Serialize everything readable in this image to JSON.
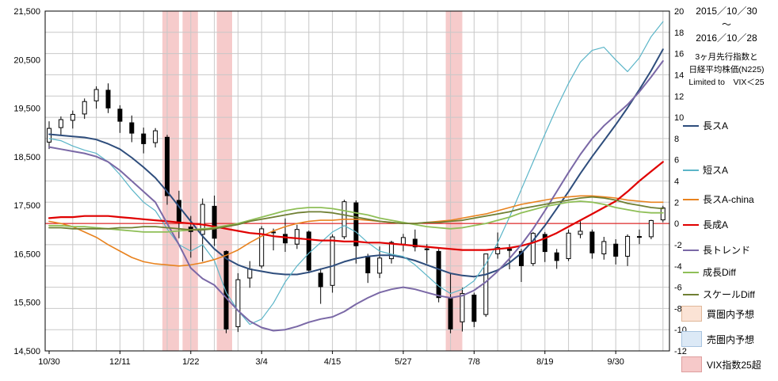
{
  "header": {
    "date_start": "2015／10／30",
    "tilde": "～",
    "date_end": "2016／10／28",
    "subtitle1": "3ヶ月先行指数と",
    "subtitle2": "日経平均株価(N225)",
    "subtitle3": "Limited to　VIX＜25"
  },
  "legend": {
    "lines": [
      {
        "key": "long-a",
        "label": "長スA",
        "color": "#2E4D7C"
      },
      {
        "key": "short-a",
        "label": "短スA",
        "color": "#5BB5C8"
      },
      {
        "key": "long-a-china",
        "label": "長スA-china",
        "color": "#E8821E"
      },
      {
        "key": "long-growth-a",
        "label": "長成A",
        "color": "#E00000"
      },
      {
        "key": "long-trend",
        "label": "長トレンド",
        "color": "#7A68A6"
      },
      {
        "key": "growth-diff",
        "label": "成長Diff",
        "color": "#8FBF57"
      },
      {
        "key": "scale-diff",
        "label": "スケールDiff",
        "color": "#6F7F33"
      }
    ],
    "boxes": [
      {
        "key": "buy-zone-forecast",
        "label": "買圏内予想",
        "fill": "#FBE3D5",
        "border": "#E0B89A"
      },
      {
        "key": "sell-zone-forecast",
        "label": "売圏内予想",
        "fill": "#DCE9F6",
        "border": "#A8C4E0"
      },
      {
        "key": "vix-over-25",
        "label": "VIX指数25超",
        "fill": "#F6C9C9",
        "border": "#DE9E9E"
      }
    ]
  },
  "chart_data": {
    "type": "candlestick+line",
    "legend_position": "right",
    "x_unit": "week",
    "x_axis": {
      "labels": [
        "10/30",
        "12/11",
        "1/22",
        "3/4",
        "4/15",
        "5/27",
        "7/8",
        "8/19",
        "9/30"
      ],
      "weeks": [
        0,
        6,
        12,
        18,
        24,
        30,
        36,
        42,
        48
      ]
    },
    "left_axis": {
      "min": 14500,
      "max": 21500,
      "ticks": [
        21500,
        20500,
        19500,
        18500,
        17500,
        16500,
        15500,
        14500
      ],
      "labels": [
        "21,500",
        "20,500",
        "19,500",
        "18,500",
        "17,500",
        "16,500",
        "15,500",
        "14,500"
      ]
    },
    "right_axis": {
      "min": -12,
      "max": 20,
      "ticks": [
        20,
        18,
        16,
        14,
        12,
        10,
        8,
        6,
        4,
        2,
        0,
        -2,
        -4,
        -6,
        -8,
        -10,
        -12
      ],
      "labels": [
        "20",
        "18",
        "16",
        "14",
        "12",
        "10",
        "8",
        "6",
        "4",
        "2",
        "0",
        "-2",
        "-4",
        "-6",
        "-8",
        "-10",
        "-12"
      ]
    },
    "grid_color": "#C8C8C8",
    "zero_line_color": "#E00000",
    "band_fill": "#F6CBCB",
    "vix_bands": [
      {
        "from": 9.6,
        "to": 11.0
      },
      {
        "from": 11.3,
        "to": 12.6
      },
      {
        "from": 14.2,
        "to": 15.5
      },
      {
        "from": 33.6,
        "to": 35.0
      }
    ],
    "candles": {
      "name": "N225",
      "up_fill": "#FFFFFF",
      "down_fill": "#000000",
      "stroke": "#000000",
      "ohlc": [
        [
          18800,
          19230,
          18660,
          19083
        ],
        [
          19100,
          19330,
          18930,
          19265
        ],
        [
          19250,
          19450,
          19080,
          19372
        ],
        [
          19380,
          19700,
          19280,
          19636
        ],
        [
          19650,
          19950,
          19490,
          19884
        ],
        [
          19870,
          20012,
          19400,
          19504
        ],
        [
          19480,
          19560,
          18990,
          19230
        ],
        [
          19200,
          19350,
          18800,
          18986
        ],
        [
          18970,
          19100,
          18570,
          18770
        ],
        [
          18790,
          19090,
          18690,
          19034
        ],
        [
          18900,
          18950,
          17510,
          17698
        ],
        [
          17600,
          17800,
          16820,
          17147
        ],
        [
          17050,
          17280,
          16420,
          16959
        ],
        [
          16900,
          17640,
          16340,
          17518
        ],
        [
          17480,
          17700,
          16660,
          16820
        ],
        [
          16550,
          16570,
          14866,
          14953
        ],
        [
          15000,
          16100,
          14890,
          15967
        ],
        [
          16000,
          16350,
          15800,
          16188
        ],
        [
          16250,
          17070,
          16200,
          17015
        ],
        [
          16950,
          17020,
          16570,
          16938
        ],
        [
          16900,
          17230,
          16540,
          16724
        ],
        [
          16700,
          17100,
          16600,
          17002
        ],
        [
          16950,
          16980,
          16100,
          16164
        ],
        [
          16100,
          16200,
          15470,
          15822
        ],
        [
          15850,
          16900,
          15700,
          16848
        ],
        [
          16850,
          17613,
          16800,
          17572
        ],
        [
          17550,
          17600,
          16300,
          16666
        ],
        [
          16450,
          16500,
          15900,
          16107
        ],
        [
          16100,
          16650,
          16000,
          16412
        ],
        [
          16400,
          16770,
          16300,
          16736
        ],
        [
          16700,
          16910,
          16550,
          16835
        ],
        [
          16800,
          17000,
          16550,
          16642
        ],
        [
          16600,
          16700,
          16300,
          16601
        ],
        [
          16550,
          16600,
          15500,
          15599
        ],
        [
          15600,
          16100,
          14864,
          14952
        ],
        [
          15100,
          15800,
          14900,
          15682
        ],
        [
          15650,
          15700,
          14990,
          15107
        ],
        [
          15250,
          16500,
          15200,
          16498
        ],
        [
          16500,
          16940,
          16400,
          16627
        ],
        [
          16600,
          16700,
          16180,
          16569
        ],
        [
          16550,
          16600,
          15920,
          16254
        ],
        [
          16300,
          16950,
          16250,
          16920
        ],
        [
          16900,
          16950,
          16330,
          16546
        ],
        [
          16520,
          16600,
          16190,
          16361
        ],
        [
          16400,
          17000,
          16350,
          16926
        ],
        [
          16900,
          17170,
          16820,
          16966
        ],
        [
          16950,
          17000,
          16400,
          16519
        ],
        [
          16500,
          16850,
          16380,
          16754
        ],
        [
          16700,
          16800,
          16280,
          16450
        ],
        [
          16450,
          16900,
          16250,
          16860
        ],
        [
          16850,
          17000,
          16700,
          16856
        ],
        [
          16850,
          17200,
          16800,
          17185
        ],
        [
          17200,
          17490,
          17150,
          17446
        ]
      ]
    },
    "series": [
      {
        "key": "long-a",
        "name": "長スA",
        "color": "#2E4D7C",
        "width": 2,
        "values": [
          8.4,
          8.3,
          8.2,
          8.1,
          7.9,
          7.5,
          7.0,
          6.2,
          5.3,
          4.3,
          3.0,
          1.6,
          0.2,
          -1.2,
          -2.4,
          -3.3,
          -3.9,
          -4.3,
          -4.5,
          -4.7,
          -4.8,
          -4.8,
          -4.6,
          -4.3,
          -4.0,
          -3.6,
          -3.3,
          -3.1,
          -3.0,
          -3.0,
          -3.2,
          -3.5,
          -3.9,
          -4.3,
          -4.7,
          -4.9,
          -5.0,
          -4.8,
          -4.4,
          -3.7,
          -2.8,
          -1.6,
          -0.2,
          1.4,
          3.0,
          4.7,
          6.3,
          7.8,
          9.3,
          10.9,
          12.6,
          14.4,
          16.4
        ]
      },
      {
        "key": "short-a",
        "name": "短スA",
        "color": "#5BB5C8",
        "width": 1.2,
        "values": [
          8.0,
          7.8,
          7.3,
          6.9,
          6.6,
          5.8,
          4.6,
          3.2,
          2.0,
          1.2,
          -0.5,
          -2.0,
          -2.6,
          -2.0,
          -3.5,
          -6.5,
          -8.2,
          -9.5,
          -9.0,
          -7.5,
          -5.5,
          -4.0,
          -2.8,
          -1.8,
          -0.8,
          -0.2,
          -0.8,
          -1.8,
          -2.6,
          -2.9,
          -3.1,
          -3.9,
          -4.9,
          -5.9,
          -6.6,
          -6.2,
          -5.4,
          -3.8,
          -1.8,
          0.6,
          3.2,
          5.8,
          8.4,
          10.9,
          13.2,
          15.2,
          16.3,
          16.6,
          15.4,
          14.3,
          15.6,
          17.6,
          19.0
        ]
      },
      {
        "key": "long-a-china",
        "name": "長スA-china",
        "color": "#E8821E",
        "width": 1.6,
        "values": [
          0.2,
          0.0,
          -0.3,
          -0.8,
          -1.3,
          -2.0,
          -2.6,
          -3.2,
          -3.6,
          -3.8,
          -3.9,
          -4.0,
          -3.9,
          -3.7,
          -3.4,
          -3.0,
          -2.5,
          -1.8,
          -1.2,
          -0.7,
          -0.3,
          0.0,
          0.2,
          0.3,
          0.3,
          0.4,
          0.4,
          0.3,
          0.2,
          0.1,
          0.0,
          0.0,
          0.1,
          0.2,
          0.3,
          0.5,
          0.7,
          0.9,
          1.2,
          1.5,
          1.8,
          2.0,
          2.2,
          2.4,
          2.5,
          2.6,
          2.6,
          2.5,
          2.4,
          2.2,
          2.1,
          2.0,
          2.0
        ]
      },
      {
        "key": "long-growth-a",
        "name": "長成A",
        "color": "#E00000",
        "width": 2.2,
        "values": [
          0.5,
          0.6,
          0.6,
          0.7,
          0.7,
          0.7,
          0.6,
          0.5,
          0.4,
          0.3,
          0.2,
          0.1,
          0.0,
          -0.1,
          -0.3,
          -0.5,
          -0.7,
          -0.9,
          -1.0,
          -1.2,
          -1.3,
          -1.4,
          -1.5,
          -1.6,
          -1.6,
          -1.7,
          -1.7,
          -1.8,
          -1.8,
          -1.9,
          -2.0,
          -2.1,
          -2.2,
          -2.3,
          -2.4,
          -2.5,
          -2.5,
          -2.5,
          -2.4,
          -2.3,
          -2.1,
          -1.8,
          -1.4,
          -0.9,
          -0.3,
          0.3,
          0.9,
          1.5,
          2.1,
          3.0,
          4.0,
          4.9,
          5.8
        ]
      },
      {
        "key": "long-trend",
        "name": "長トレンド",
        "color": "#7A68A6",
        "width": 2,
        "values": [
          7.2,
          7.0,
          6.8,
          6.6,
          6.3,
          5.8,
          5.0,
          4.0,
          3.0,
          2.0,
          0.0,
          -2.0,
          -4.2,
          -5.2,
          -5.8,
          -7.0,
          -8.2,
          -9.2,
          -9.8,
          -10.1,
          -10.0,
          -9.7,
          -9.3,
          -9.0,
          -8.8,
          -8.3,
          -7.6,
          -7.0,
          -6.5,
          -6.2,
          -6.0,
          -6.2,
          -6.5,
          -6.8,
          -7.0,
          -6.8,
          -6.3,
          -5.5,
          -4.5,
          -3.3,
          -2.0,
          -0.5,
          1.2,
          3.0,
          4.8,
          6.5,
          8.0,
          9.2,
          10.2,
          11.2,
          12.4,
          13.8,
          15.3
        ]
      },
      {
        "key": "growth-diff",
        "name": "成長Diff",
        "color": "#8FBF57",
        "width": 1.8,
        "values": [
          -0.2,
          -0.2,
          -0.3,
          -0.3,
          -0.4,
          -0.5,
          -0.6,
          -0.7,
          -0.8,
          -0.8,
          -0.8,
          -0.7,
          -0.6,
          -0.5,
          -0.4,
          -0.2,
          0.0,
          0.3,
          0.6,
          0.9,
          1.2,
          1.4,
          1.5,
          1.5,
          1.4,
          1.2,
          1.0,
          0.8,
          0.5,
          0.3,
          0.1,
          -0.1,
          -0.3,
          -0.4,
          -0.5,
          -0.4,
          -0.2,
          0.0,
          0.3,
          0.6,
          1.0,
          1.3,
          1.6,
          1.8,
          2.0,
          2.1,
          2.0,
          1.8,
          1.5,
          1.3,
          1.1,
          1.0,
          1.0
        ]
      },
      {
        "key": "scale-diff",
        "name": "スケールDiff",
        "color": "#6F7F33",
        "width": 1.8,
        "values": [
          -0.4,
          -0.4,
          -0.5,
          -0.5,
          -0.5,
          -0.5,
          -0.4,
          -0.4,
          -0.3,
          -0.3,
          -0.4,
          -0.5,
          -0.6,
          -0.6,
          -0.5,
          -0.3,
          -0.1,
          0.2,
          0.4,
          0.6,
          0.8,
          1.0,
          1.1,
          1.1,
          1.0,
          0.8,
          0.6,
          0.4,
          0.2,
          0.1,
          0.0,
          0.0,
          0.1,
          0.1,
          0.2,
          0.3,
          0.5,
          0.7,
          0.9,
          1.1,
          1.4,
          1.6,
          1.8,
          2.0,
          2.2,
          2.4,
          2.5,
          2.4,
          2.2,
          1.9,
          1.7,
          1.5,
          1.4
        ]
      }
    ]
  }
}
